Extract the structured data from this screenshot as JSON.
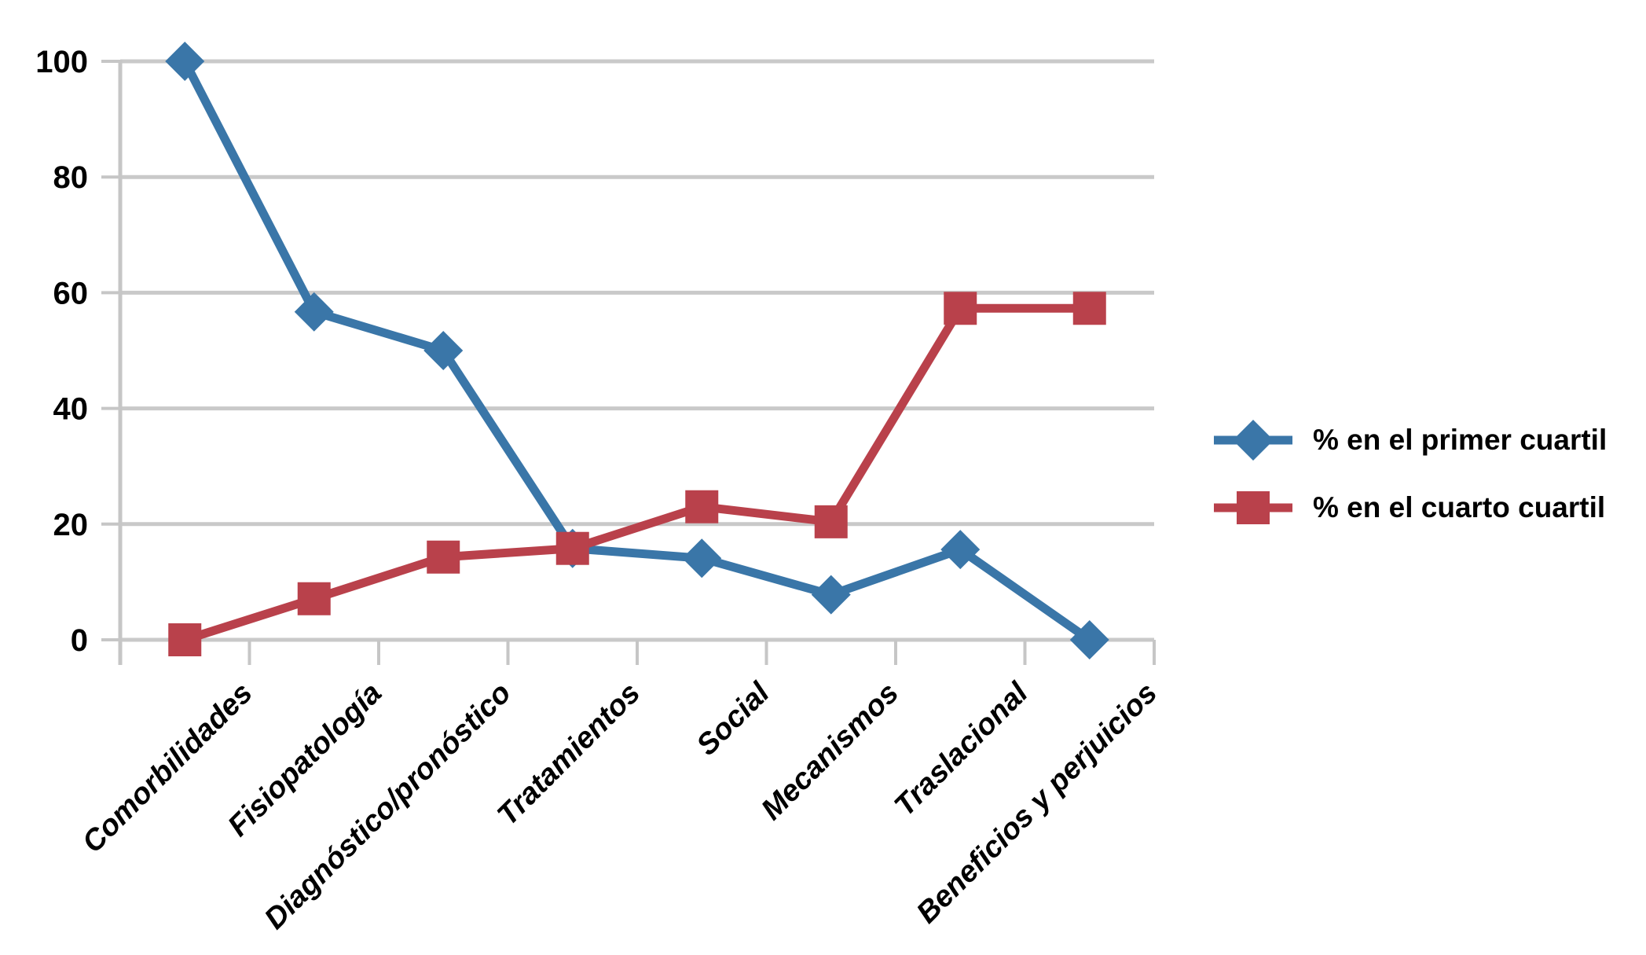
{
  "chart_data": {
    "type": "line",
    "title": "",
    "categories": [
      "Comorbilidades",
      "Fisiopatología",
      "Diagnóstico/pronóstico",
      "Tratamientos",
      "Social",
      "Mecanismos",
      "Traslacional",
      "Beneficios y perjuicios"
    ],
    "series": [
      {
        "name": "% en el primer cuartil",
        "color": "#3A76A8",
        "marker": "diamond",
        "values": [
          100,
          56.7,
          50,
          15.8,
          14.1,
          7.8,
          15.6,
          0
        ]
      },
      {
        "name": "% en el cuarto cuartil",
        "color": "#B9414B",
        "marker": "square",
        "values": [
          0,
          7.1,
          14.3,
          15.8,
          23,
          20.4,
          57.3,
          57.3
        ]
      }
    ],
    "xlabel": "",
    "ylabel": "",
    "ylim": [
      0,
      100
    ],
    "y_ticks": [
      0,
      20,
      40,
      60,
      80,
      100
    ],
    "y_tick_labels": [
      "0",
      "20",
      "40",
      "60",
      "80",
      "100"
    ],
    "grid": true,
    "grid_color": "#C9C9C9",
    "axis_color": "#C6C6C6",
    "text_color": "#000000",
    "legend_position": "right"
  }
}
